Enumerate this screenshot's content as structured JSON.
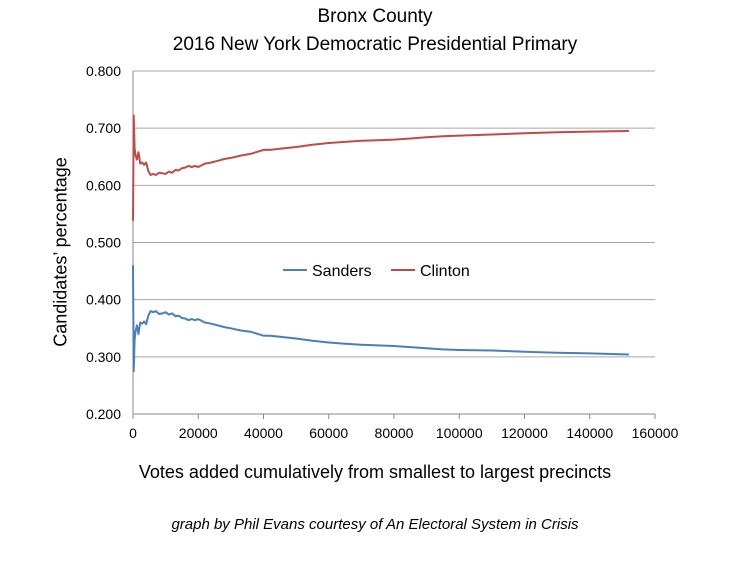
{
  "chart_data": {
    "type": "line",
    "title": "Bronx County",
    "subtitle": "2016 New York Democratic Presidential Primary",
    "xlabel": "Votes added cumulatively from smallest to largest precincts",
    "ylabel": "Candidates’ percentage",
    "credit": "graph by Phil Evans courtesy of An Electoral System in Crisis",
    "xlim": [
      0,
      160000
    ],
    "ylim": [
      0.2,
      0.8
    ],
    "x_ticks": [
      0,
      20000,
      40000,
      60000,
      80000,
      100000,
      120000,
      140000,
      160000
    ],
    "y_ticks": [
      "0.200",
      "0.300",
      "0.400",
      "0.500",
      "0.600",
      "0.700",
      "0.800"
    ],
    "grid": "horizontal",
    "legend_position": "center",
    "series": [
      {
        "name": "Sanders",
        "color": "#4a7ebb",
        "x": [
          0,
          200,
          500,
          800,
          1200,
          1700,
          2200,
          2800,
          3400,
          4000,
          4700,
          5400,
          6200,
          7000,
          8000,
          9000,
          10000,
          11000,
          12000,
          13000,
          14000,
          15000,
          16000,
          17000,
          18000,
          19000,
          20000,
          22000,
          24000,
          26000,
          28000,
          30000,
          33000,
          36000,
          40000,
          42000,
          45000,
          50000,
          55000,
          60000,
          65000,
          70000,
          75000,
          80000,
          85000,
          90000,
          95000,
          100000,
          110000,
          120000,
          130000,
          140000,
          152000
        ],
        "values": [
          0.46,
          0.275,
          0.33,
          0.345,
          0.355,
          0.34,
          0.36,
          0.358,
          0.362,
          0.357,
          0.372,
          0.38,
          0.378,
          0.38,
          0.375,
          0.376,
          0.378,
          0.374,
          0.376,
          0.371,
          0.372,
          0.368,
          0.367,
          0.364,
          0.366,
          0.364,
          0.366,
          0.36,
          0.358,
          0.355,
          0.352,
          0.35,
          0.346,
          0.344,
          0.337,
          0.337,
          0.335,
          0.332,
          0.328,
          0.325,
          0.323,
          0.321,
          0.32,
          0.319,
          0.317,
          0.315,
          0.313,
          0.312,
          0.311,
          0.309,
          0.307,
          0.306,
          0.304
        ]
      },
      {
        "name": "Clinton",
        "color": "#be4b48",
        "x": [
          0,
          200,
          500,
          800,
          1200,
          1700,
          2200,
          2800,
          3400,
          4000,
          4700,
          5400,
          6200,
          7000,
          8000,
          9000,
          10000,
          11000,
          12000,
          13000,
          14000,
          15000,
          16000,
          17000,
          18000,
          19000,
          20000,
          22000,
          24000,
          26000,
          28000,
          30000,
          33000,
          36000,
          40000,
          42000,
          45000,
          50000,
          55000,
          60000,
          65000,
          70000,
          75000,
          80000,
          85000,
          90000,
          95000,
          100000,
          110000,
          120000,
          130000,
          140000,
          152000
        ],
        "values": [
          0.538,
          0.722,
          0.665,
          0.652,
          0.645,
          0.658,
          0.638,
          0.64,
          0.636,
          0.64,
          0.625,
          0.618,
          0.62,
          0.618,
          0.622,
          0.621,
          0.62,
          0.624,
          0.622,
          0.627,
          0.626,
          0.63,
          0.631,
          0.634,
          0.632,
          0.634,
          0.632,
          0.638,
          0.64,
          0.643,
          0.646,
          0.648,
          0.652,
          0.655,
          0.662,
          0.662,
          0.664,
          0.667,
          0.671,
          0.674,
          0.676,
          0.678,
          0.679,
          0.68,
          0.682,
          0.684,
          0.686,
          0.687,
          0.689,
          0.691,
          0.693,
          0.694,
          0.695
        ]
      }
    ]
  }
}
